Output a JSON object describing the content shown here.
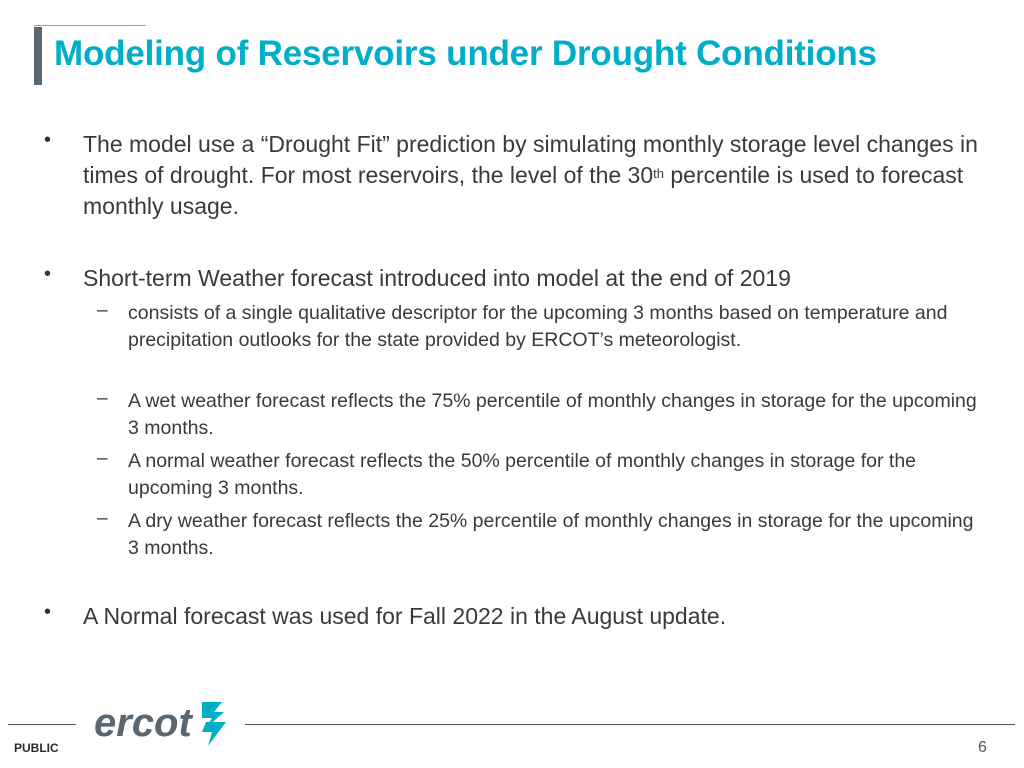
{
  "slide": {
    "title": "Modeling of Reservoirs under Drought Conditions",
    "bullets": [
      {
        "symbol": "•",
        "text_before_sup": "The model use a “Drought Fit” prediction by simulating monthly storage level changes in times of drought. For most reservoirs, the level of the 30",
        "sup": "th",
        "text_after_sup": " percentile is used to forecast monthly usage."
      },
      {
        "symbol": "•",
        "text": "Short-term Weather forecast introduced into model at the end of 2019",
        "sub_items": [
          {
            "symbol": "–",
            "text": "consists of a single qualitative descriptor for the upcoming 3 months based on temperature and precipitation outlooks for the state provided by ERCOT’s meteorologist."
          },
          {
            "symbol": "–",
            "text": "A wet weather forecast reflects the 75% percentile of monthly changes in storage for the upcoming 3 months."
          },
          {
            "symbol": "–",
            "text": "A normal weather forecast reflects the 50% percentile of monthly changes in storage for the upcoming 3 months."
          },
          {
            "symbol": "–",
            "text": "A dry weather forecast reflects the 25% percentile of monthly changes in storage for the upcoming 3 months."
          }
        ]
      },
      {
        "symbol": "•",
        "text": "A Normal forecast was used for Fall 2022 in the August update."
      }
    ]
  },
  "footer": {
    "logo_text": "ercot",
    "classification": "PUBLIC",
    "page_number": "6"
  },
  "colors": {
    "title": "#00aec7",
    "logo_text": "#5b6770",
    "logo_mark": "#00aec7"
  }
}
